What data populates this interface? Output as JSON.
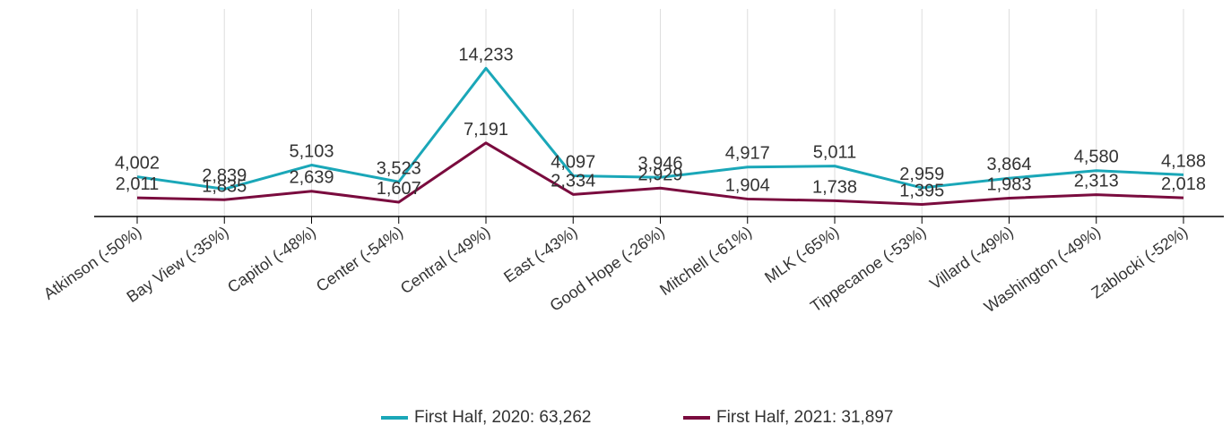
{
  "chart_data": {
    "type": "line",
    "categories": [
      "Atkinson (-50%)",
      "Bay View (-35%)",
      "Capitol (-48%)",
      "Center (-54%)",
      "Central (-49%)",
      "East (-43%)",
      "Good Hope (-26%)",
      "Mitchell (-61%)",
      "MLK (-65%)",
      "Tippecanoe (-53%)",
      "Villard (-49%)",
      "Washington (-49%)",
      "Zablocki (-52%)"
    ],
    "series": [
      {
        "name": "First Half, 2020: 63,262",
        "color": "#1aa7b8",
        "values": [
          4002,
          2839,
          5103,
          3523,
          14233,
          4097,
          3946,
          4917,
          5011,
          2959,
          3864,
          4580,
          4188
        ],
        "value_labels": [
          "4,002",
          "2,839",
          "5,103",
          "3,523",
          "14,233",
          "4,097",
          "3,946",
          "4,917",
          "5,011",
          "2,959",
          "3,864",
          "4,580",
          "4,188"
        ]
      },
      {
        "name": "First Half, 2021: 31,897",
        "color": "#7a0b3e",
        "values": [
          2011,
          1835,
          2639,
          1607,
          7191,
          2334,
          2929,
          1904,
          1738,
          1395,
          1983,
          2313,
          2018
        ],
        "value_labels": [
          "2,011",
          "1,835",
          "2,639",
          "1,607",
          "7,191",
          "2,334",
          "2,929",
          "1,904",
          "1,738",
          "1,395",
          "1,983",
          "2,313",
          "2,018"
        ]
      }
    ],
    "ylim": [
      0,
      20000
    ],
    "grid": true
  }
}
